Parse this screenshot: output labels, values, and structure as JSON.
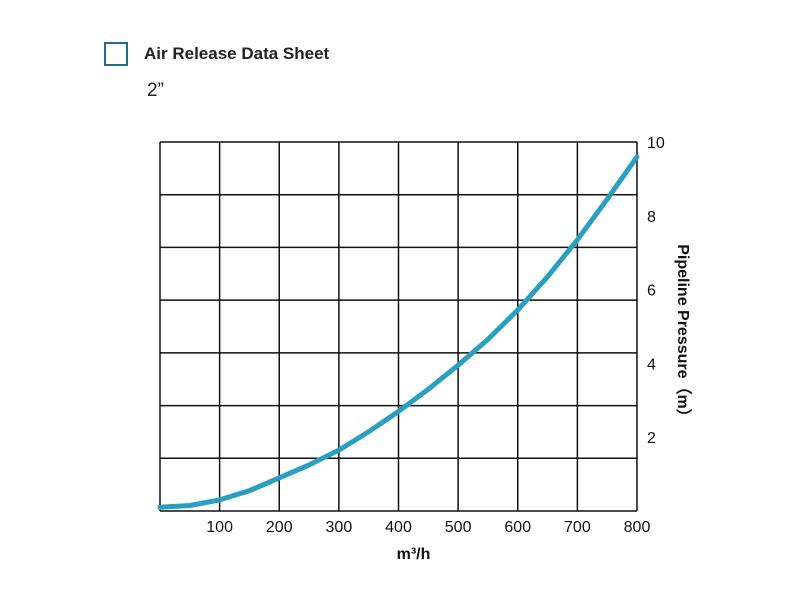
{
  "header": {
    "title": "Air Release Data Sheet",
    "size": "2”"
  },
  "colors": {
    "curve": "#2a9fbf",
    "checkbox": "#1f6f8b",
    "grid": "#111111"
  },
  "chart_data": {
    "type": "line",
    "title": "Air Release Data Sheet",
    "xlabel": "m³/h",
    "ylabel": "Pipeline Pressure（m）",
    "xlim": [
      0,
      800
    ],
    "ylim": [
      0,
      10
    ],
    "x_ticks": [
      100,
      200,
      300,
      400,
      500,
      600,
      700,
      800
    ],
    "y_ticks": [
      2,
      4,
      6,
      8,
      10
    ],
    "grid": true,
    "y_axis_position": "right",
    "series": [
      {
        "x": [
          0,
          50,
          100,
          150,
          200,
          250,
          300,
          350,
          400,
          450,
          500,
          550,
          600,
          650,
          700,
          750,
          800
        ],
        "y": [
          0.1,
          0.15,
          0.3,
          0.55,
          0.9,
          1.25,
          1.65,
          2.15,
          2.7,
          3.3,
          3.95,
          4.65,
          5.45,
          6.35,
          7.35,
          8.45,
          9.6
        ]
      }
    ]
  }
}
